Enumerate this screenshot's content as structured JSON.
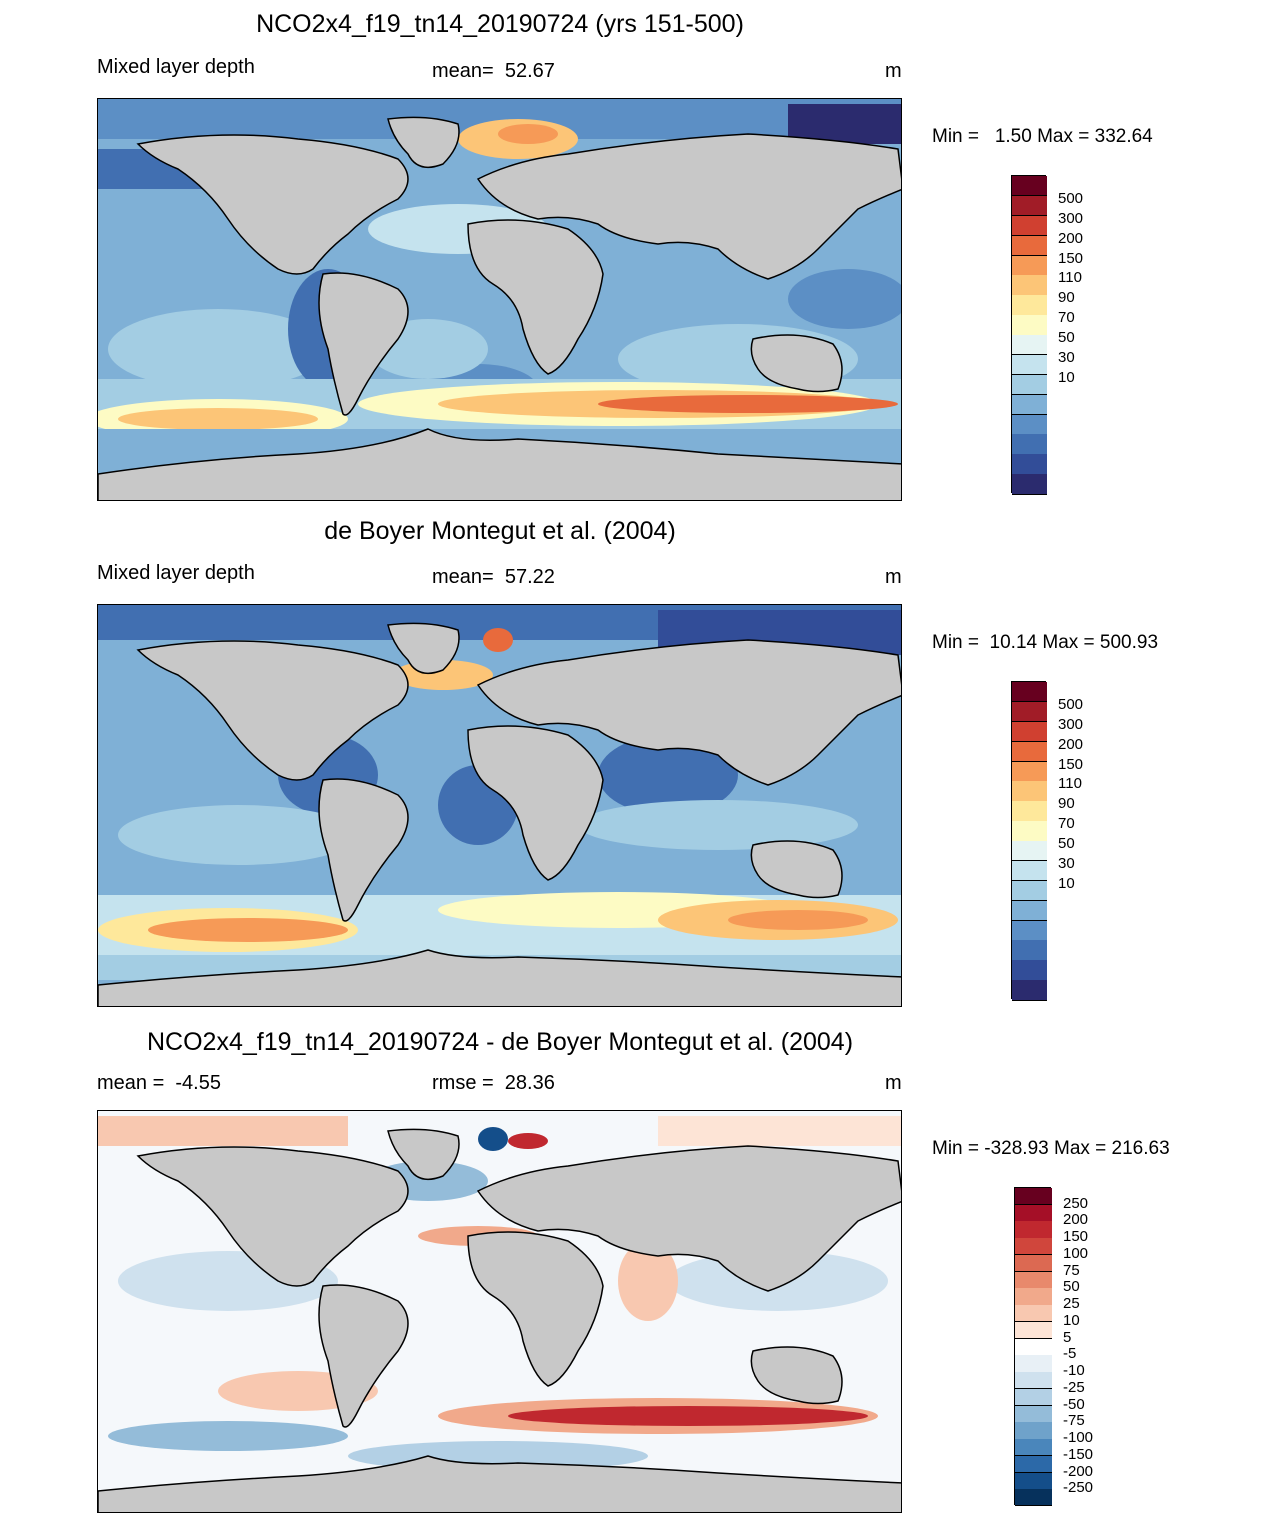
{
  "panels": [
    {
      "title": "NCO2x4_f19_tn14_20190724 (yrs 151-500)",
      "left_text": "Mixed layer depth",
      "center_text": "mean=  52.67",
      "units": "m",
      "minmax": "Min =   1.50 Max = 332.64",
      "colorbar": {
        "labels": [
          "500",
          "300",
          "200",
          "150",
          "110",
          "90",
          "70",
          "50",
          "30",
          "10"
        ],
        "colors": [
          "#67001f",
          "#a11c27",
          "#d04030",
          "#e86a3c",
          "#f69a57",
          "#fcc577",
          "#fee89b",
          "#fdfbc4",
          "#e6f4f3",
          "#c5e3ee",
          "#a3cde3",
          "#7fb0d6",
          "#5c8fc5",
          "#416fb1",
          "#324d98",
          "#2b2b6e"
        ]
      }
    },
    {
      "title": "de Boyer Montegut et al. (2004)",
      "left_text": "Mixed layer depth",
      "center_text": "mean=  57.22",
      "units": "m",
      "minmax": "Min =  10.14 Max = 500.93",
      "colorbar": {
        "labels": [
          "500",
          "300",
          "200",
          "150",
          "110",
          "90",
          "70",
          "50",
          "30",
          "10"
        ],
        "colors": [
          "#67001f",
          "#a11c27",
          "#d04030",
          "#e86a3c",
          "#f69a57",
          "#fcc577",
          "#fee89b",
          "#fdfbc4",
          "#e6f4f3",
          "#c5e3ee",
          "#a3cde3",
          "#7fb0d6",
          "#5c8fc5",
          "#416fb1",
          "#324d98",
          "#2b2b6e"
        ]
      }
    },
    {
      "title": "NCO2x4_f19_tn14_20190724 - de Boyer Montegut et al. (2004)",
      "left_text": "mean =  -4.55",
      "center_text": "rmse =  28.36",
      "units": "m",
      "minmax": "Min = -328.93 Max = 216.63",
      "colorbar": {
        "labels": [
          "250",
          "200",
          "150",
          "100",
          "75",
          "50",
          "25",
          "10",
          "5",
          "-5",
          "-10",
          "-25",
          "-50",
          "-75",
          "-100",
          "-150",
          "-200",
          "-250"
        ],
        "colors": [
          "#67001f",
          "#a50f27",
          "#c0282f",
          "#d0463c",
          "#dc6952",
          "#e8896c",
          "#f1a98b",
          "#f8c8b0",
          "#fde4d6",
          "#ffffff",
          "#e8f0f6",
          "#cfe1ee",
          "#b3d0e5",
          "#94bcd9",
          "#6fa2ca",
          "#4a86bb",
          "#2c69a8",
          "#144e8a",
          "#06315c"
        ]
      }
    }
  ],
  "colors": {
    "land": "#c8c8c8",
    "coast": "#000000"
  }
}
